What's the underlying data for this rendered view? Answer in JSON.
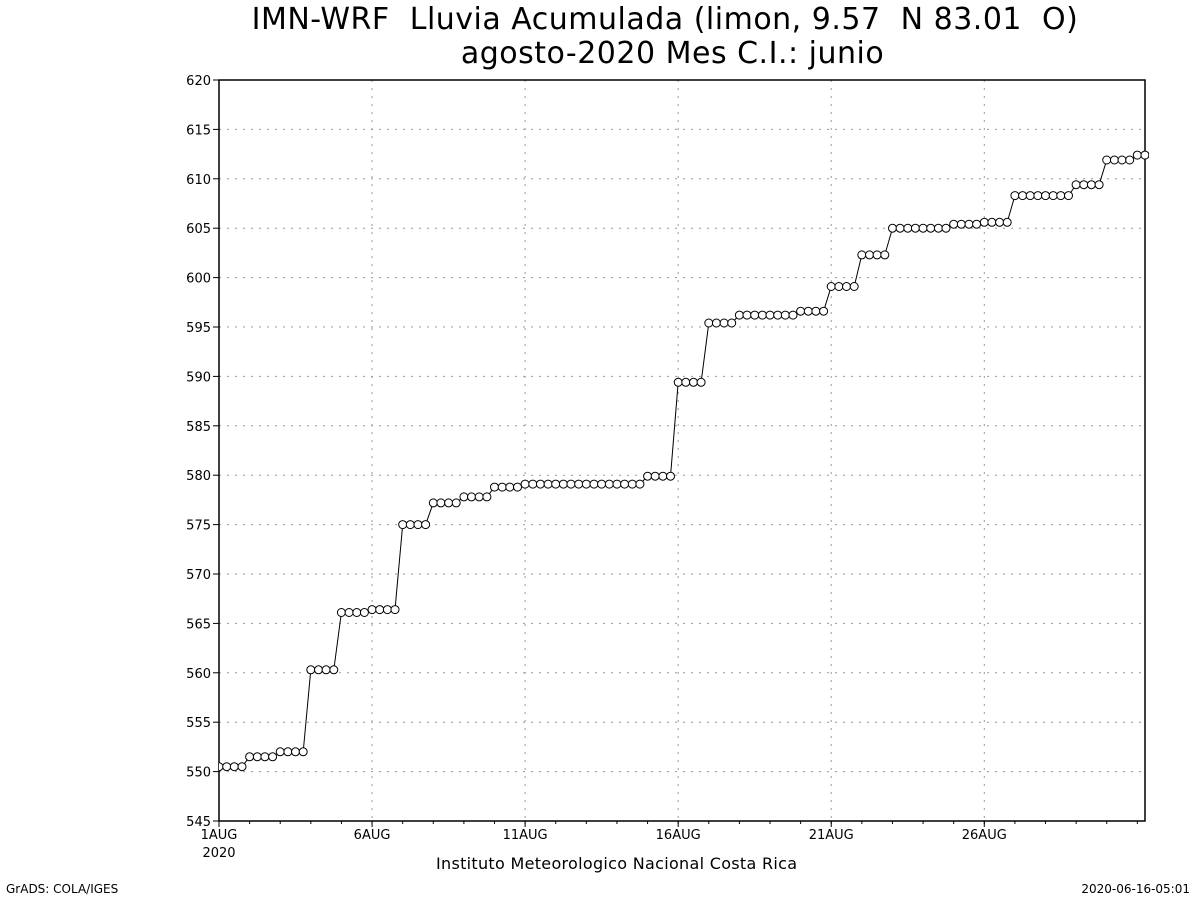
{
  "title_line1": "IMN-WRF  Lluvia Acumulada (limon, 9.57  N 83.01  O)",
  "title_line2": "agosto-2020 Mes C.I.: junio",
  "institution": "Instituto Meteorologico Nacional Costa Rica",
  "footer_left": "GrADS: COLA/IGES",
  "footer_right": "2020-06-16-05:01",
  "chart_data": {
    "type": "line",
    "title": "IMN-WRF  Lluvia Acumulada (limon, 9.57  N 83.01  O) agosto-2020 Mes C.I.: junio",
    "xlabel": "",
    "ylabel": "",
    "x_unit": "days since 1AUG2020 00Z",
    "xlim": [
      0,
      30.25
    ],
    "ylim": [
      545,
      620
    ],
    "y_ticks": [
      545,
      550,
      555,
      560,
      565,
      570,
      575,
      580,
      585,
      590,
      595,
      600,
      605,
      610,
      615,
      620
    ],
    "x_ticks": [
      {
        "x": 0,
        "label": "1AUG",
        "sublabel": "2020"
      },
      {
        "x": 5,
        "label": "6AUG"
      },
      {
        "x": 10,
        "label": "11AUG"
      },
      {
        "x": 15,
        "label": "16AUG"
      },
      {
        "x": 20,
        "label": "21AUG"
      },
      {
        "x": 25,
        "label": "26AUG"
      }
    ],
    "grid": true,
    "series": [
      {
        "name": "",
        "marker": "open-circle",
        "step": 0.25,
        "values": [
          550.5,
          550.5,
          550.5,
          550.5,
          551.5,
          551.5,
          551.5,
          551.5,
          552.0,
          552.0,
          552.0,
          552.0,
          560.3,
          560.3,
          560.3,
          560.3,
          566.1,
          566.1,
          566.1,
          566.1,
          566.4,
          566.4,
          566.4,
          566.4,
          575.0,
          575.0,
          575.0,
          575.0,
          577.2,
          577.2,
          577.2,
          577.2,
          577.8,
          577.8,
          577.8,
          577.8,
          578.8,
          578.8,
          578.8,
          578.8,
          579.1,
          579.1,
          579.1,
          579.1,
          579.1,
          579.1,
          579.1,
          579.1,
          579.1,
          579.1,
          579.1,
          579.1,
          579.1,
          579.1,
          579.1,
          579.1,
          579.9,
          579.9,
          579.9,
          579.9,
          589.4,
          589.4,
          589.4,
          589.4,
          595.4,
          595.4,
          595.4,
          595.4,
          596.2,
          596.2,
          596.2,
          596.2,
          596.2,
          596.2,
          596.2,
          596.2,
          596.6,
          596.6,
          596.6,
          596.6,
          599.1,
          599.1,
          599.1,
          599.1,
          602.3,
          602.3,
          602.3,
          602.3,
          605.0,
          605.0,
          605.0,
          605.0,
          605.0,
          605.0,
          605.0,
          605.0,
          605.4,
          605.4,
          605.4,
          605.4,
          605.6,
          605.6,
          605.6,
          605.6,
          608.3,
          608.3,
          608.3,
          608.3,
          608.3,
          608.3,
          608.3,
          608.3,
          609.4,
          609.4,
          609.4,
          609.4,
          611.9,
          611.9,
          611.9,
          611.9,
          612.4,
          612.4,
          612.4,
          612.4
        ]
      }
    ]
  }
}
